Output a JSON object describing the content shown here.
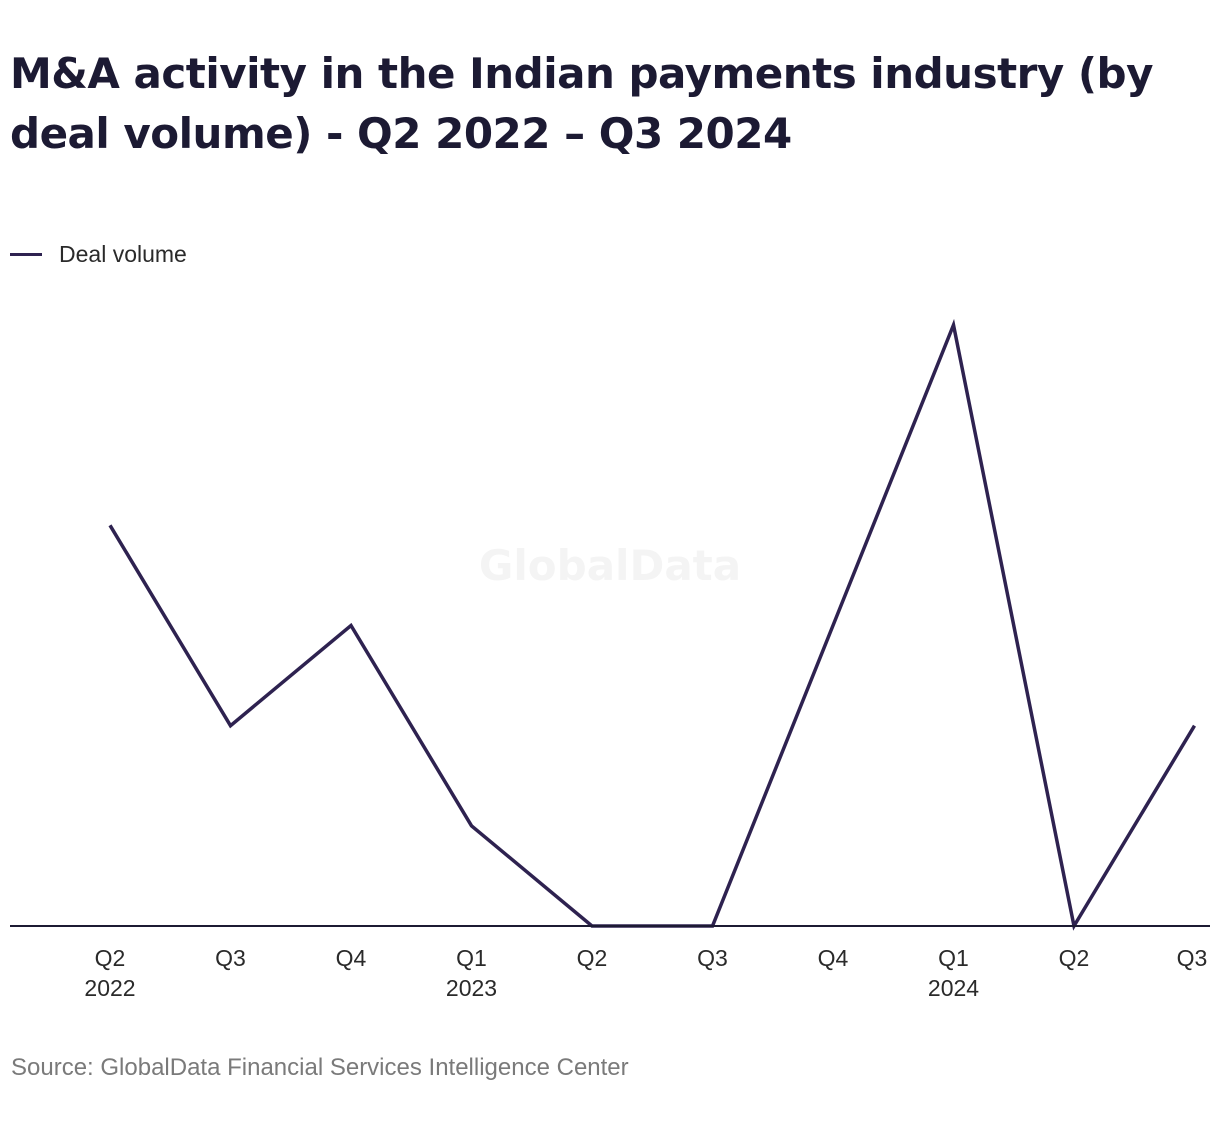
{
  "title": "M&A activity in the Indian payments industry (by deal volume) - Q2 2022 – Q3 2024",
  "source": "Source: GlobalData Financial Services Intelligence Center",
  "watermark": "GlobalData",
  "colors": {
    "line": "#2e2250",
    "axis": "#1c1a33",
    "tick_text": "#2a2a2a",
    "watermark": "#f4f4f4"
  },
  "chart_data": {
    "type": "line",
    "title": "M&A activity in the Indian payments industry (by deal volume) - Q2 2022 – Q3 2024",
    "categories": [
      {
        "quarter": "Q2",
        "year": "2022"
      },
      {
        "quarter": "Q3",
        "year": ""
      },
      {
        "quarter": "Q4",
        "year": ""
      },
      {
        "quarter": "Q1",
        "year": "2023"
      },
      {
        "quarter": "Q2",
        "year": ""
      },
      {
        "quarter": "Q3",
        "year": ""
      },
      {
        "quarter": "Q4",
        "year": ""
      },
      {
        "quarter": "Q1",
        "year": "2024"
      },
      {
        "quarter": "Q2",
        "year": ""
      },
      {
        "quarter": "Q3",
        "year": ""
      }
    ],
    "series": [
      {
        "name": "Deal volume",
        "values": [
          4,
          2,
          3,
          1,
          0,
          0,
          3,
          6,
          0,
          2
        ]
      }
    ],
    "xlabel": "",
    "ylabel": "",
    "ylim": [
      0,
      6
    ],
    "grid": false,
    "y_axis_labels": false,
    "legend_position": "top-left"
  }
}
